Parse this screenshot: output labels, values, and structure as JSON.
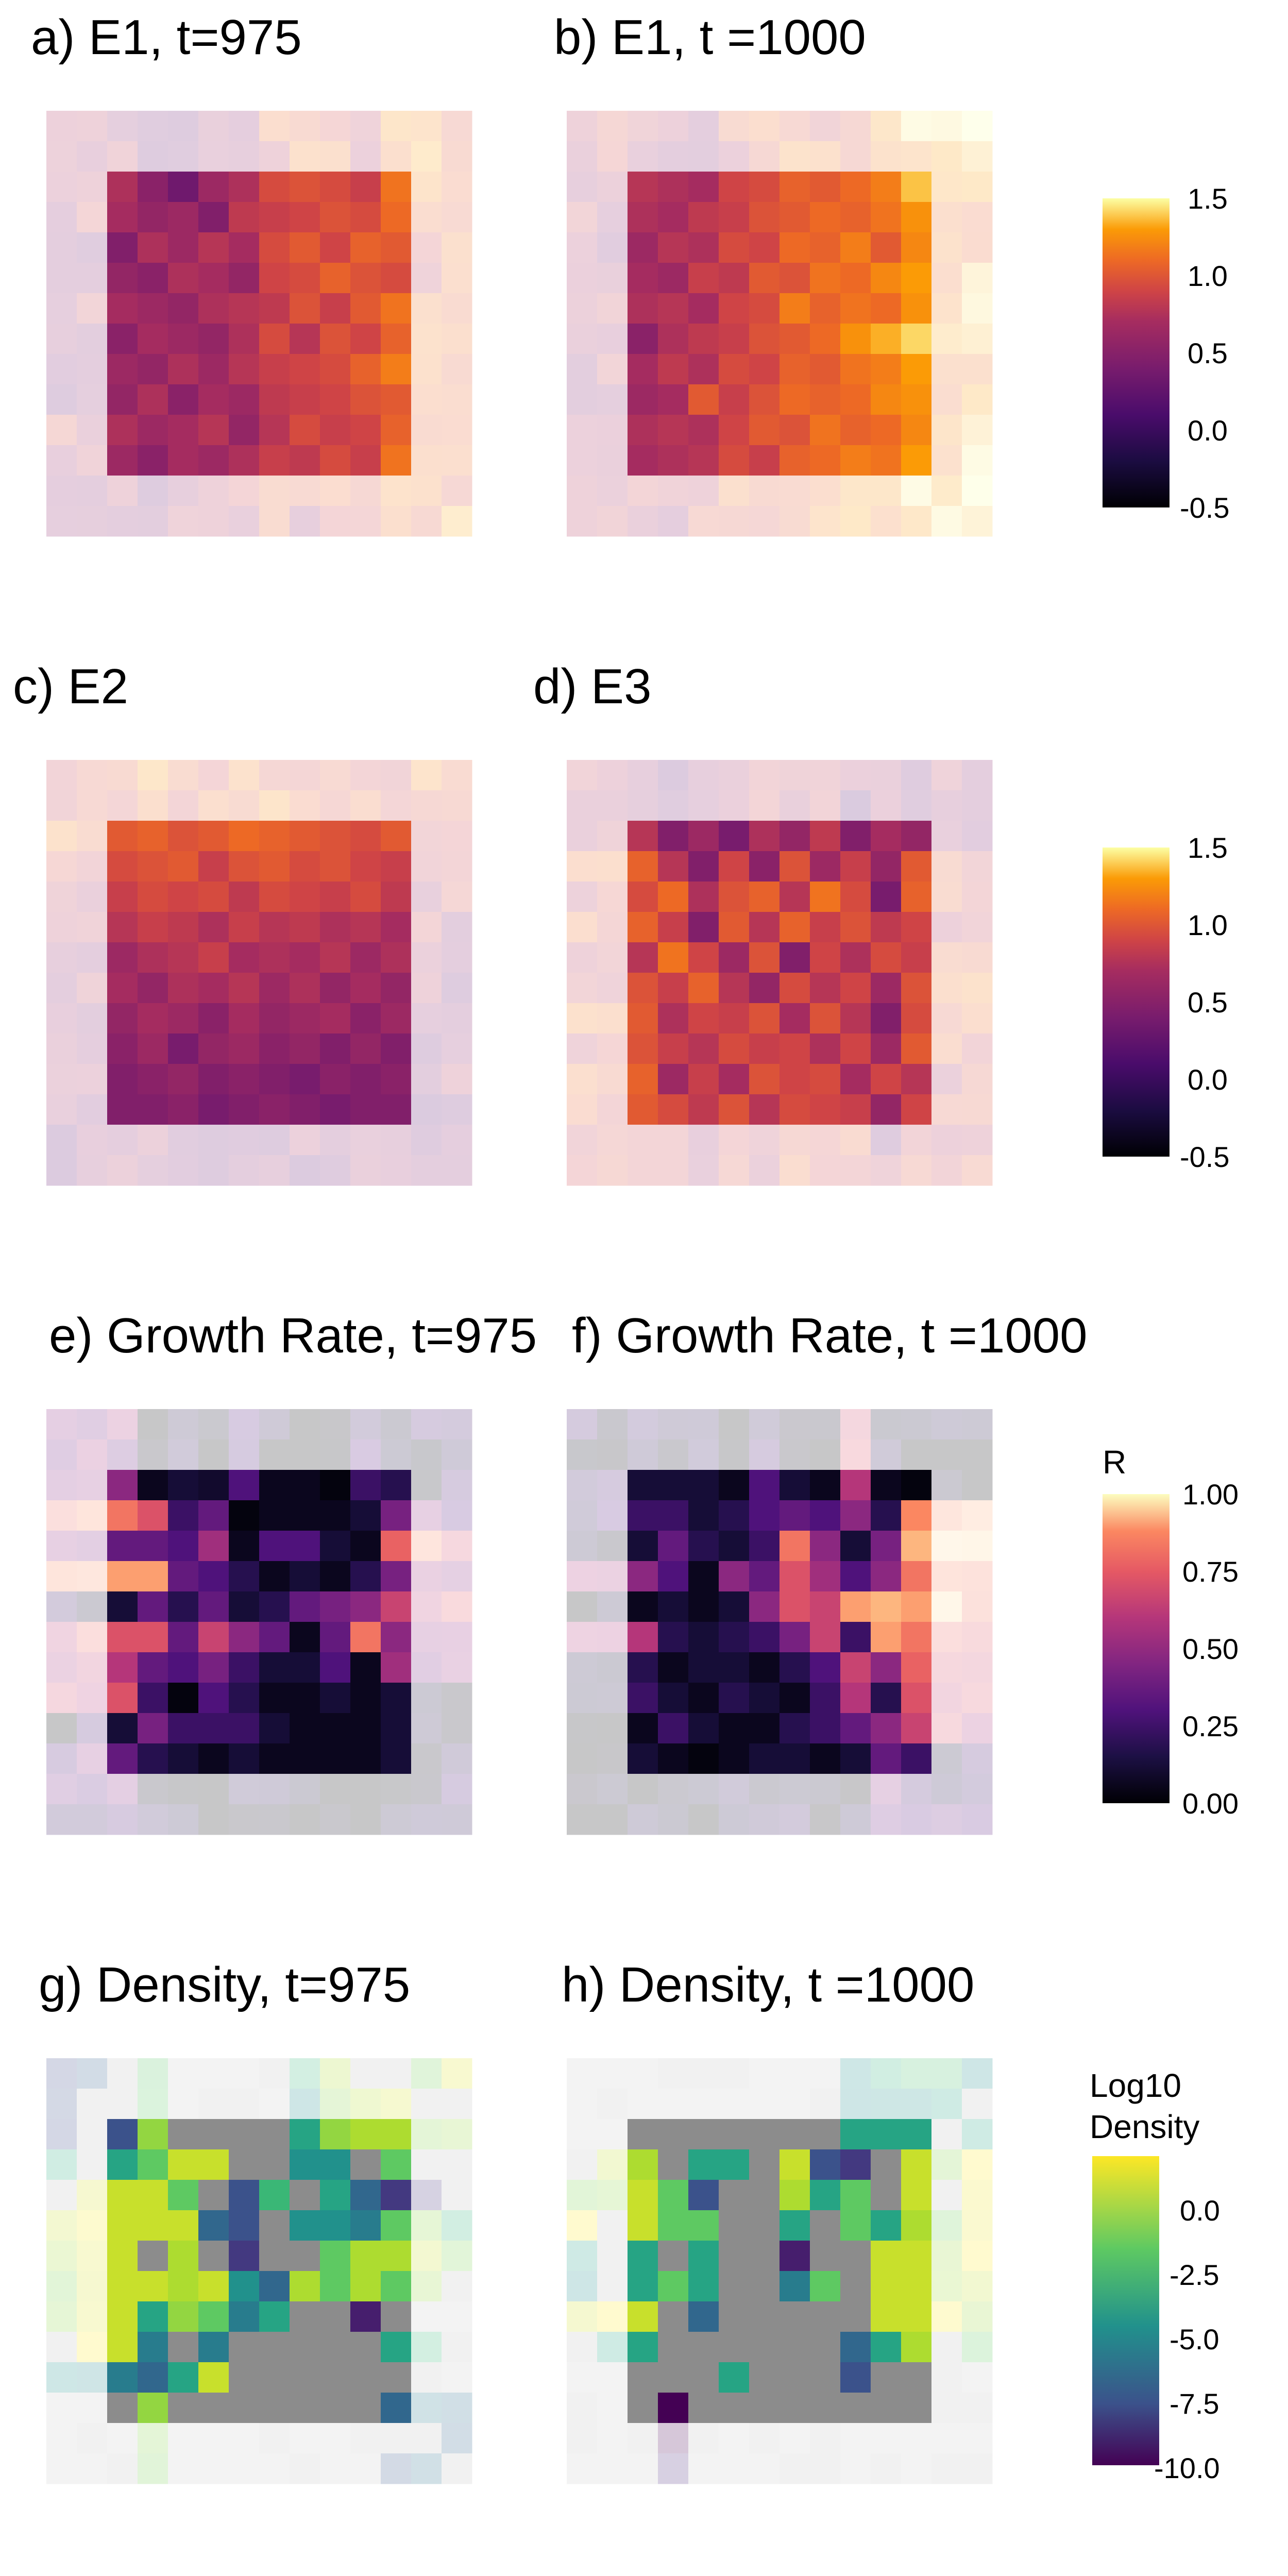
{
  "panels": {
    "a": {
      "title": "a) E1, t=975"
    },
    "b": {
      "title": "b) E1, t =1000"
    },
    "c": {
      "title": "c) E2"
    },
    "d": {
      "title": "d) E3"
    },
    "e": {
      "title": "e) Growth Rate, t=975"
    },
    "f": {
      "title": "f) Growth Rate, t =1000"
    },
    "g": {
      "title": "g) Density, t=975"
    },
    "h": {
      "title": "h) Density, t =1000"
    }
  },
  "legends": {
    "e_value": {
      "title": "",
      "ticks": [
        "1.5",
        "1.0",
        "0.5",
        "0.0",
        "-0.5"
      ],
      "range": [
        -0.5,
        1.5
      ],
      "palette": "inferno"
    },
    "e_value_2": {
      "title": "",
      "ticks": [
        "1.5",
        "1.0",
        "0.5",
        "0.0",
        "-0.5"
      ],
      "range": [
        -0.5,
        1.5
      ],
      "palette": "inferno"
    },
    "growth": {
      "title": "R",
      "ticks": [
        "1.00",
        "0.75",
        "0.50",
        "0.25",
        "0.00"
      ],
      "range": [
        0,
        1
      ],
      "palette": "magma"
    },
    "density": {
      "title_line1": "Log10",
      "title_line2": "Density",
      "ticks": [
        "0.0",
        "-2.5",
        "-5.0",
        "-7.5",
        "-10.0"
      ],
      "range": [
        -10,
        2
      ],
      "palette": "viridis"
    }
  },
  "colors": {
    "na_gray": "#8c8c8c",
    "background": "#ffffff"
  },
  "chart_data": [
    {
      "type": "heatmap",
      "panel": "a",
      "title": "a) E1, t=975",
      "grid": "14x14",
      "inner_block": "10x10",
      "scale": "inferno",
      "range": [
        -0.5,
        1.5
      ],
      "pattern": "gradient",
      "inner_values": [
        [
          0.55,
          0.35,
          0.2,
          0.45,
          0.55,
          0.8,
          0.85,
          0.8,
          0.7,
          1.05
        ],
        [
          0.5,
          0.4,
          0.45,
          0.3,
          0.65,
          0.7,
          0.75,
          0.85,
          0.8,
          1.0
        ],
        [
          0.3,
          0.55,
          0.45,
          0.6,
          0.5,
          0.8,
          0.9,
          0.75,
          0.95,
          0.9
        ],
        [
          0.4,
          0.35,
          0.55,
          0.5,
          0.4,
          0.75,
          0.8,
          0.95,
          0.85,
          0.8
        ],
        [
          0.5,
          0.45,
          0.4,
          0.55,
          0.6,
          0.65,
          0.85,
          0.7,
          0.9,
          1.05
        ],
        [
          0.35,
          0.5,
          0.45,
          0.4,
          0.55,
          0.8,
          0.6,
          0.85,
          0.75,
          0.95
        ],
        [
          0.45,
          0.4,
          0.55,
          0.45,
          0.6,
          0.7,
          0.75,
          0.8,
          0.95,
          1.1
        ],
        [
          0.4,
          0.55,
          0.35,
          0.5,
          0.45,
          0.65,
          0.7,
          0.75,
          0.85,
          0.9
        ],
        [
          0.55,
          0.45,
          0.5,
          0.6,
          0.4,
          0.6,
          0.8,
          0.7,
          0.75,
          0.95
        ],
        [
          0.45,
          0.35,
          0.5,
          0.45,
          0.55,
          0.7,
          0.65,
          0.8,
          0.7,
          1.05
        ]
      ]
    },
    {
      "type": "heatmap",
      "panel": "b",
      "title": "b) E1, t =1000",
      "grid": "14x14",
      "inner_block": "10x10",
      "scale": "inferno",
      "range": [
        -0.5,
        1.5
      ],
      "pattern": "gradient",
      "inner_values": [
        [
          0.6,
          0.55,
          0.5,
          0.75,
          0.8,
          0.95,
          0.9,
          1.0,
          1.1,
          1.35
        ],
        [
          0.55,
          0.5,
          0.65,
          0.7,
          0.85,
          0.9,
          1.0,
          0.95,
          1.05,
          1.2
        ],
        [
          0.45,
          0.6,
          0.55,
          0.8,
          0.75,
          1.0,
          0.95,
          1.1,
          0.9,
          1.15
        ],
        [
          0.5,
          0.45,
          0.7,
          0.65,
          0.9,
          0.85,
          1.05,
          1.0,
          1.15,
          1.25
        ],
        [
          0.55,
          0.6,
          0.5,
          0.75,
          0.8,
          1.1,
          0.95,
          1.05,
          1.0,
          1.2
        ],
        [
          0.35,
          0.55,
          0.65,
          0.7,
          0.85,
          0.9,
          1.0,
          1.2,
          1.3,
          1.4
        ],
        [
          0.5,
          0.65,
          0.55,
          0.8,
          0.75,
          0.95,
          0.9,
          1.05,
          1.1,
          1.25
        ],
        [
          0.45,
          0.5,
          0.9,
          0.7,
          0.85,
          1.0,
          0.95,
          1.0,
          1.15,
          1.2
        ],
        [
          0.55,
          0.6,
          0.55,
          0.75,
          0.9,
          0.85,
          1.05,
          0.95,
          1.0,
          1.15
        ],
        [
          0.5,
          0.55,
          0.6,
          0.8,
          0.7,
          0.95,
          1.0,
          1.1,
          1.05,
          1.25
        ]
      ]
    },
    {
      "type": "heatmap",
      "panel": "c",
      "title": "c) E2",
      "grid": "14x14",
      "inner_block": "10x10",
      "scale": "inferno",
      "range": [
        -0.5,
        1.5
      ],
      "pattern": "gradient",
      "inner_values": [
        [
          0.9,
          0.95,
          0.85,
          0.9,
          1.0,
          0.95,
          0.9,
          0.85,
          0.8,
          0.9
        ],
        [
          0.8,
          0.85,
          0.9,
          0.7,
          0.85,
          0.9,
          0.8,
          0.85,
          0.75,
          0.7
        ],
        [
          0.7,
          0.8,
          0.75,
          0.8,
          0.65,
          0.8,
          0.75,
          0.7,
          0.8,
          0.65
        ],
        [
          0.6,
          0.7,
          0.65,
          0.55,
          0.7,
          0.6,
          0.65,
          0.55,
          0.6,
          0.5
        ],
        [
          0.45,
          0.55,
          0.6,
          0.7,
          0.5,
          0.55,
          0.5,
          0.6,
          0.45,
          0.55
        ],
        [
          0.5,
          0.4,
          0.55,
          0.5,
          0.6,
          0.45,
          0.55,
          0.4,
          0.5,
          0.4
        ],
        [
          0.4,
          0.5,
          0.45,
          0.35,
          0.5,
          0.4,
          0.45,
          0.5,
          0.35,
          0.45
        ],
        [
          0.35,
          0.45,
          0.25,
          0.4,
          0.45,
          0.35,
          0.4,
          0.3,
          0.4,
          0.3
        ],
        [
          0.3,
          0.35,
          0.4,
          0.3,
          0.35,
          0.3,
          0.25,
          0.35,
          0.3,
          0.35
        ],
        [
          0.3,
          0.3,
          0.35,
          0.25,
          0.3,
          0.35,
          0.3,
          0.25,
          0.3,
          0.3
        ]
      ]
    },
    {
      "type": "heatmap",
      "panel": "d",
      "title": "d) E3",
      "grid": "14x14",
      "inner_block": "10x10",
      "scale": "inferno",
      "range": [
        -0.5,
        1.5
      ],
      "pattern": "noisy",
      "inner_values": [
        [
          0.6,
          0.3,
          0.45,
          0.25,
          0.55,
          0.4,
          0.65,
          0.3,
          0.5,
          0.4
        ],
        [
          0.95,
          0.6,
          0.3,
          0.75,
          0.35,
          0.85,
          0.45,
          0.7,
          0.4,
          0.9
        ],
        [
          0.8,
          1.0,
          0.55,
          0.85,
          0.95,
          0.6,
          1.05,
          0.8,
          0.25,
          0.95
        ],
        [
          0.95,
          0.7,
          0.3,
          0.9,
          0.6,
          0.95,
          0.7,
          0.85,
          0.65,
          0.75
        ],
        [
          0.6,
          1.05,
          0.75,
          0.45,
          0.85,
          0.3,
          0.75,
          0.55,
          0.8,
          0.7
        ],
        [
          0.85,
          0.7,
          0.95,
          0.6,
          0.4,
          0.8,
          0.6,
          0.75,
          0.45,
          0.85
        ],
        [
          0.9,
          0.55,
          0.75,
          0.7,
          0.85,
          0.5,
          0.85,
          0.6,
          0.3,
          0.8
        ],
        [
          0.85,
          0.7,
          0.6,
          0.8,
          0.7,
          0.75,
          0.55,
          0.75,
          0.45,
          0.9
        ],
        [
          0.95,
          0.45,
          0.7,
          0.5,
          0.85,
          0.75,
          0.8,
          0.5,
          0.75,
          0.6
        ],
        [
          0.9,
          0.8,
          0.65,
          0.85,
          0.6,
          0.8,
          0.75,
          0.7,
          0.4,
          0.75
        ]
      ]
    },
    {
      "type": "heatmap",
      "panel": "e",
      "title": "e) Growth Rate, t=975",
      "grid": "14x14",
      "inner_block": "10x10",
      "scale": "magma",
      "range": [
        0,
        1
      ],
      "pattern": "noisy",
      "inner_values": [
        [
          0.4,
          0.05,
          0.1,
          0.08,
          0.25,
          0.05,
          0.05,
          0.02,
          0.2,
          0.15
        ],
        [
          0.7,
          0.6,
          0.2,
          0.3,
          0.02,
          0.05,
          0.05,
          0.05,
          0.1,
          0.35
        ],
        [
          0.3,
          0.3,
          0.25,
          0.45,
          0.05,
          0.25,
          0.25,
          0.1,
          0.05,
          0.65
        ],
        [
          0.8,
          0.8,
          0.3,
          0.25,
          0.15,
          0.05,
          0.1,
          0.05,
          0.15,
          0.35
        ],
        [
          0.1,
          0.3,
          0.15,
          0.3,
          0.1,
          0.15,
          0.3,
          0.35,
          0.4,
          0.55
        ],
        [
          0.6,
          0.6,
          0.3,
          0.55,
          0.4,
          0.3,
          0.05,
          0.3,
          0.7,
          0.4
        ],
        [
          0.5,
          0.3,
          0.25,
          0.35,
          0.2,
          0.1,
          0.1,
          0.25,
          0.05,
          0.45
        ],
        [
          0.6,
          0.2,
          0.02,
          0.25,
          0.15,
          0.05,
          0.05,
          0.1,
          0.05,
          0.1
        ],
        [
          0.1,
          0.35,
          0.2,
          0.2,
          0.2,
          0.1,
          0.05,
          0.05,
          0.05,
          0.1
        ],
        [
          0.3,
          0.15,
          0.1,
          0.05,
          0.1,
          0.05,
          0.05,
          0.05,
          0.05,
          0.1
        ]
      ]
    },
    {
      "type": "heatmap",
      "panel": "f",
      "title": "f) Growth Rate, t =1000",
      "grid": "14x14",
      "inner_block": "10x10",
      "scale": "magma",
      "range": [
        0,
        1
      ],
      "pattern": "noisy",
      "inner_values": [
        [
          0.1,
          0.1,
          0.1,
          0.05,
          0.25,
          0.1,
          0.05,
          0.5,
          0.05,
          0.02
        ],
        [
          0.2,
          0.2,
          0.1,
          0.15,
          0.25,
          0.3,
          0.25,
          0.4,
          0.15,
          0.75
        ],
        [
          0.1,
          0.3,
          0.15,
          0.1,
          0.2,
          0.7,
          0.4,
          0.1,
          0.35,
          0.85
        ],
        [
          0.4,
          0.25,
          0.05,
          0.4,
          0.3,
          0.6,
          0.45,
          0.25,
          0.4,
          0.7
        ],
        [
          0.05,
          0.1,
          0.05,
          0.1,
          0.4,
          0.6,
          0.55,
          0.8,
          0.85,
          0.8
        ],
        [
          0.5,
          0.15,
          0.1,
          0.15,
          0.2,
          0.35,
          0.55,
          0.2,
          0.8,
          0.7
        ],
        [
          0.15,
          0.05,
          0.1,
          0.1,
          0.05,
          0.15,
          0.25,
          0.55,
          0.4,
          0.65
        ],
        [
          0.2,
          0.1,
          0.05,
          0.15,
          0.1,
          0.05,
          0.2,
          0.5,
          0.15,
          0.6
        ],
        [
          0.05,
          0.2,
          0.1,
          0.05,
          0.05,
          0.15,
          0.2,
          0.3,
          0.4,
          0.55
        ],
        [
          0.1,
          0.05,
          0.02,
          0.05,
          0.1,
          0.1,
          0.05,
          0.1,
          0.3,
          0.2
        ]
      ]
    },
    {
      "type": "heatmap",
      "panel": "g",
      "title": "g) Density, t=975",
      "grid": "14x14",
      "inner_block": "10x10",
      "scale": "viridis",
      "range": [
        -10,
        2
      ],
      "na": "gray",
      "inner_values": [
        [
          -7.0,
          0.0,
          null,
          null,
          null,
          null,
          -3.0,
          0.0,
          0.5,
          0.5
        ],
        [
          -3.0,
          -1.0,
          1.0,
          1.0,
          null,
          null,
          -4.0,
          -4.0,
          null,
          -1.0
        ],
        [
          1.0,
          1.0,
          -1.0,
          null,
          -7.0,
          -2.0,
          null,
          -3.0,
          -6.0,
          -8.0
        ],
        [
          1.0,
          1.0,
          1.0,
          -6.0,
          -7.0,
          null,
          -4.0,
          -4.0,
          -5.0,
          -1.0
        ],
        [
          1.0,
          null,
          0.5,
          null,
          -8.0,
          null,
          null,
          -1.0,
          0.5,
          0.5
        ],
        [
          1.0,
          1.0,
          0.5,
          1.0,
          -4.0,
          -6.0,
          0.5,
          -1.0,
          0.5,
          -1.0
        ],
        [
          1.0,
          -3.0,
          0.0,
          -1.0,
          -5.0,
          -3.0,
          null,
          null,
          -9.0,
          null
        ],
        [
          1.0,
          -5.0,
          null,
          -5.0,
          null,
          null,
          null,
          null,
          null,
          -3.0
        ],
        [
          -5.0,
          -6.0,
          -3.0,
          1.0,
          null,
          null,
          null,
          null,
          null,
          null
        ],
        [
          null,
          0.0,
          null,
          null,
          null,
          null,
          null,
          null,
          null,
          -6.0
        ]
      ]
    },
    {
      "type": "heatmap",
      "panel": "h",
      "title": "h) Density, t =1000",
      "grid": "14x14",
      "inner_block": "10x10",
      "scale": "viridis",
      "range": [
        -10,
        2
      ],
      "na": "gray",
      "inner_values": [
        [
          null,
          null,
          null,
          null,
          null,
          null,
          null,
          -3.0,
          -3.0,
          -3.0
        ],
        [
          0.5,
          null,
          -3.0,
          -3.0,
          null,
          1.0,
          -7.0,
          -8.0,
          null,
          1.0
        ],
        [
          1.0,
          -1.0,
          -7.0,
          null,
          null,
          0.5,
          -3.0,
          -1.0,
          null,
          1.0
        ],
        [
          1.0,
          -1.0,
          -1.0,
          null,
          null,
          -3.0,
          null,
          -1.0,
          -3.0,
          0.5
        ],
        [
          -3.0,
          null,
          -3.0,
          null,
          null,
          -9.0,
          null,
          null,
          1.0,
          1.0
        ],
        [
          -3.0,
          -1.0,
          -3.0,
          null,
          null,
          -5.0,
          -1.0,
          null,
          1.0,
          1.0
        ],
        [
          1.0,
          null,
          -6.0,
          null,
          null,
          null,
          null,
          null,
          1.0,
          1.0
        ],
        [
          -3.0,
          null,
          null,
          null,
          null,
          null,
          null,
          -6.0,
          -3.0,
          0.5
        ],
        [
          null,
          null,
          null,
          -3.0,
          null,
          null,
          null,
          -7.0,
          null,
          null
        ],
        [
          null,
          -10.0,
          null,
          null,
          null,
          null,
          null,
          null,
          null,
          null
        ]
      ]
    }
  ]
}
